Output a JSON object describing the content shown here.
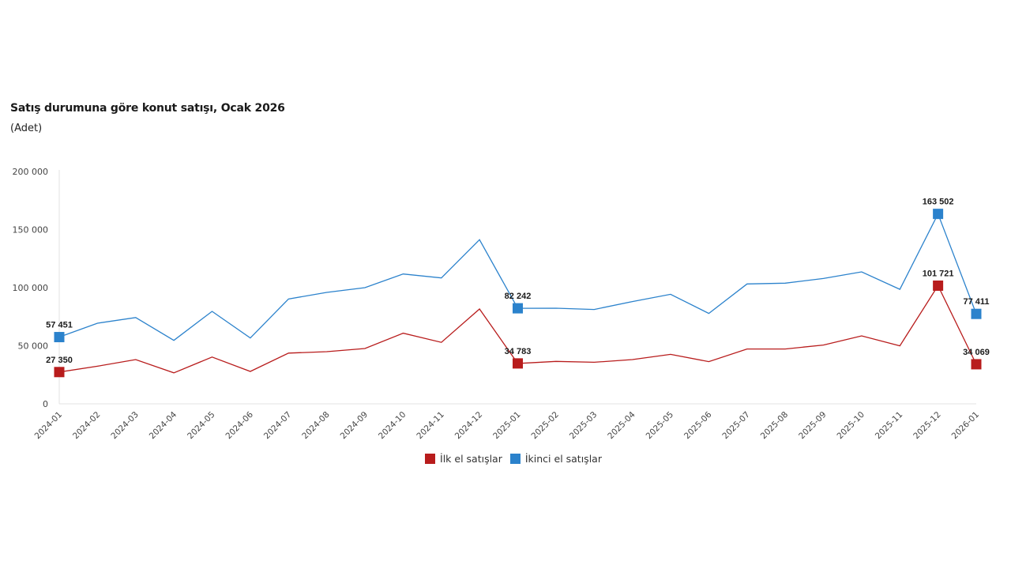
{
  "chart_data": {
    "type": "line",
    "title": "Satış durumuna göre konut satışı, Ocak 2026",
    "subtitle": "(Adet)",
    "xlabel": "",
    "ylabel": "",
    "ylim": [
      0,
      200000
    ],
    "yticks": [
      0,
      50000,
      100000,
      150000,
      200000
    ],
    "ytick_labels": [
      "0",
      "50 000",
      "100 000",
      "150 000",
      "200 000"
    ],
    "grid": false,
    "legend_position": "bottom-center",
    "categories": [
      "2024-01",
      "2024-02",
      "2024-03",
      "2024-04",
      "2024-05",
      "2024-06",
      "2024-07",
      "2024-08",
      "2024-09",
      "2024-10",
      "2024-11",
      "2024-12",
      "2025-01",
      "2025-02",
      "2025-03",
      "2025-04",
      "2025-05",
      "2025-06",
      "2025-07",
      "2025-08",
      "2025-09",
      "2025-10",
      "2025-11",
      "2025-12",
      "2026-01"
    ],
    "series": [
      {
        "name": "İlk el satışlar",
        "color": "#b81c1c",
        "values": [
          27350,
          32400,
          38100,
          26700,
          40300,
          27900,
          43700,
          44900,
          47600,
          60800,
          52900,
          81600,
          34783,
          36500,
          35800,
          38100,
          42600,
          36300,
          47200,
          47200,
          50600,
          58500,
          49900,
          101721,
          34069
        ],
        "labeled_points": [
          {
            "index": 0,
            "label": "27 350"
          },
          {
            "index": 12,
            "label": "34 783"
          },
          {
            "index": 23,
            "label": "101 721"
          },
          {
            "index": 24,
            "label": "34 069"
          }
        ]
      },
      {
        "name": "İkinci el satışlar",
        "color": "#2b82cc",
        "values": [
          57451,
          69400,
          74300,
          54600,
          79600,
          56700,
          90300,
          95900,
          100000,
          111800,
          108400,
          141300,
          82242,
          82300,
          81200,
          88000,
          94300,
          77800,
          103200,
          103900,
          107900,
          113600,
          98600,
          163502,
          77411
        ],
        "labeled_points": [
          {
            "index": 0,
            "label": "57 451"
          },
          {
            "index": 12,
            "label": "82 242"
          },
          {
            "index": 23,
            "label": "163 502"
          },
          {
            "index": 24,
            "label": "77 411"
          }
        ]
      }
    ]
  },
  "legend": {
    "items": [
      {
        "label": "İlk el satışlar",
        "color": "#b81c1c"
      },
      {
        "label": "İkinci el satışlar",
        "color": "#2b82cc"
      }
    ]
  }
}
